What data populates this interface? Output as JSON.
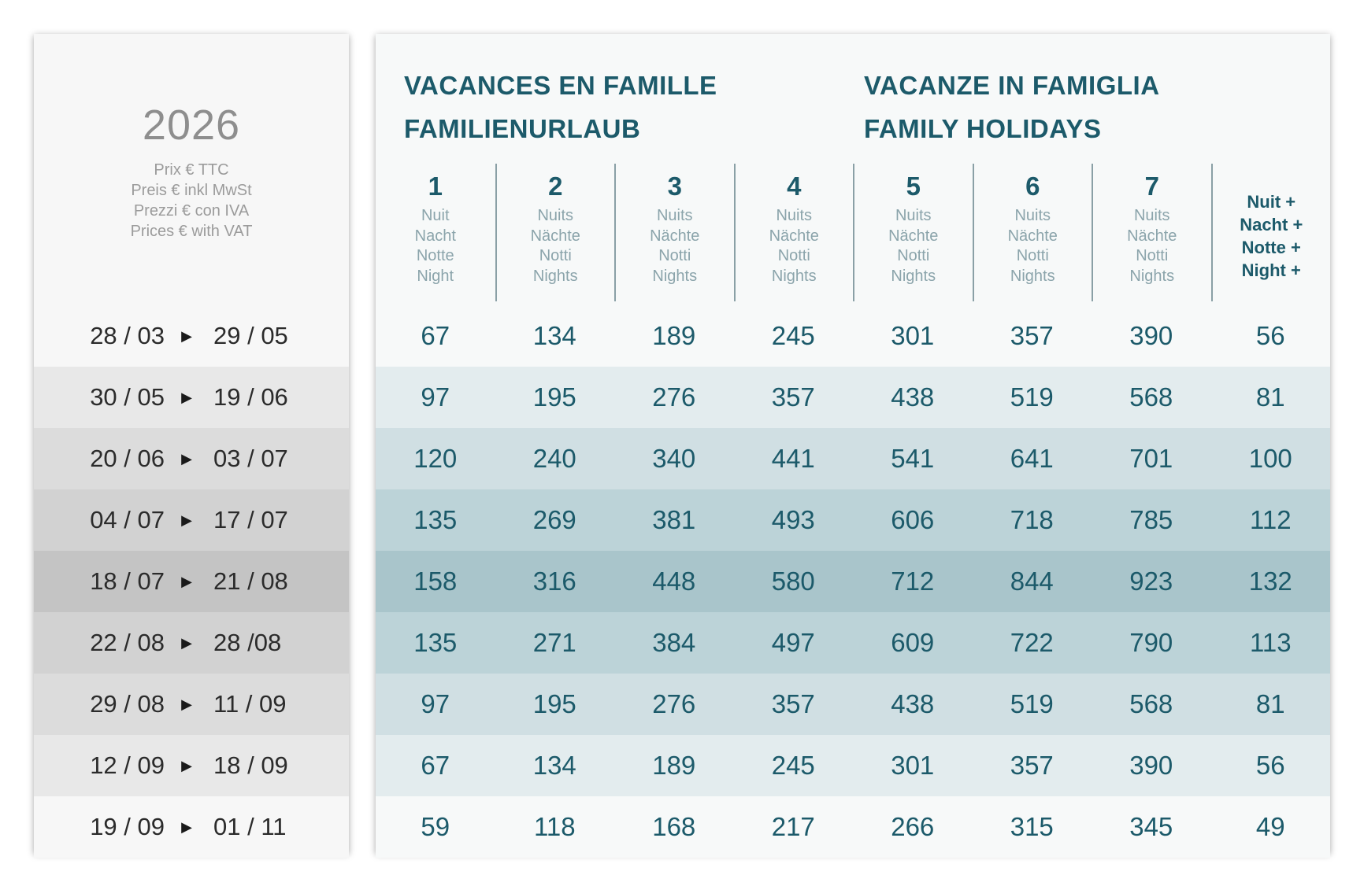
{
  "left": {
    "year": "2026",
    "price_notes": [
      "Prix € TTC",
      "Preis € inkl MwSt",
      "Prezzi € con IVA",
      "Prices € with VAT"
    ],
    "arrow_icon": "triangle-right-icon"
  },
  "titles": {
    "left_line1": "VACANCES EN FAMILLE",
    "left_line2": "FAMILIENURLAUB",
    "right_line1": "VACANZE IN FAMIGLIA",
    "right_line2": "FAMILY HOLIDAYS"
  },
  "columns": [
    {
      "num": "1",
      "units": [
        "Nuit",
        "Nacht",
        "Notte",
        "Night"
      ]
    },
    {
      "num": "2",
      "units": [
        "Nuits",
        "Nächte",
        "Notti",
        "Nights"
      ]
    },
    {
      "num": "3",
      "units": [
        "Nuits",
        "Nächte",
        "Notti",
        "Nights"
      ]
    },
    {
      "num": "4",
      "units": [
        "Nuits",
        "Nächte",
        "Notti",
        "Nights"
      ]
    },
    {
      "num": "5",
      "units": [
        "Nuits",
        "Nächte",
        "Notti",
        "Nights"
      ]
    },
    {
      "num": "6",
      "units": [
        "Nuits",
        "Nächte",
        "Notti",
        "Nights"
      ]
    },
    {
      "num": "7",
      "units": [
        "Nuits",
        "Nächte",
        "Notti",
        "Nights"
      ]
    }
  ],
  "extra_column": [
    "Nuit +",
    "Nacht +",
    "Notte +",
    "Night +"
  ],
  "rows": [
    {
      "from": "28 / 03",
      "to": "29 / 05",
      "prices": [
        "67",
        "134",
        "189",
        "245",
        "301",
        "357",
        "390",
        "56"
      ],
      "left_bg": "#f7f7f7",
      "main_bg": "#f7f9f9"
    },
    {
      "from": "30 / 05",
      "to": "19 / 06",
      "prices": [
        "97",
        "195",
        "276",
        "357",
        "438",
        "519",
        "568",
        "81"
      ],
      "left_bg": "#e8e8e8",
      "main_bg": "#e3ecee"
    },
    {
      "from": "20 / 06",
      "to": "03 / 07",
      "prices": [
        "120",
        "240",
        "340",
        "441",
        "541",
        "641",
        "701",
        "100"
      ],
      "left_bg": "#dcdcdc",
      "main_bg": "#d0dfe3"
    },
    {
      "from": "04 / 07",
      "to": "17 / 07",
      "prices": [
        "135",
        "269",
        "381",
        "493",
        "606",
        "718",
        "785",
        "112"
      ],
      "left_bg": "#d2d2d2",
      "main_bg": "#bcd3d8"
    },
    {
      "from": "18 / 07",
      "to": "21 / 08",
      "prices": [
        "158",
        "316",
        "448",
        "580",
        "712",
        "844",
        "923",
        "132"
      ],
      "left_bg": "#c4c4c4",
      "main_bg": "#a9c5cb"
    },
    {
      "from": "22 / 08",
      "to": "28 /08",
      "prices": [
        "135",
        "271",
        "384",
        "497",
        "609",
        "722",
        "790",
        "113"
      ],
      "left_bg": "#d2d2d2",
      "main_bg": "#bcd3d8"
    },
    {
      "from": "29 / 08",
      "to": "11 / 09",
      "prices": [
        "97",
        "195",
        "276",
        "357",
        "438",
        "519",
        "568",
        "81"
      ],
      "left_bg": "#dcdcdc",
      "main_bg": "#d0dfe3"
    },
    {
      "from": "12 / 09",
      "to": "18 / 09",
      "prices": [
        "67",
        "134",
        "189",
        "245",
        "301",
        "357",
        "390",
        "56"
      ],
      "left_bg": "#e8e8e8",
      "main_bg": "#e3ecee"
    },
    {
      "from": "19 / 09",
      "to": "01 / 11",
      "prices": [
        "59",
        "118",
        "168",
        "217",
        "266",
        "315",
        "345",
        "49"
      ],
      "left_bg": "#f7f7f7",
      "main_bg": "#f7f9f9"
    }
  ],
  "colors": {
    "accent": "#1c5a6a",
    "muted_text": "#8ba4ab",
    "year_grey": "#8e8e8e"
  }
}
